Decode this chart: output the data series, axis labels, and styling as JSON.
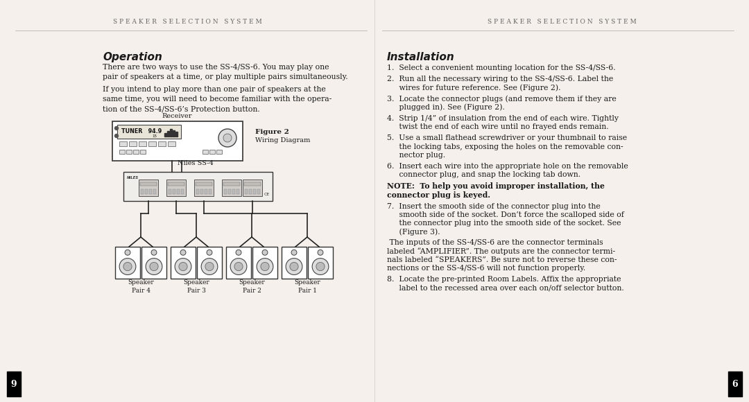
{
  "bg_color": "#f5f0eb",
  "header_left": "S P E A K E R   S E L E C T I O N   S Y S T E M",
  "header_right": "S P E A K E R   S E L E C T I O N   S Y S T E M",
  "page_num_left": "9",
  "page_num_right": "6",
  "left_section_title": "Operation",
  "left_para1": "There are two ways to use the SS-4/SS-6. You may play one\npair of speakers at a time, or play multiple pairs simultaneously.",
  "left_para2": "If you intend to play more than one pair of speakers at the\nsame time, you will need to become familiar with the opera-\ntion of the SS-4/SS-6’s Protection button.",
  "figure_label": "Figure 2",
  "figure_caption": "Wiring Diagram",
  "receiver_label": "Receiver",
  "niles_label": "Niles SS-4",
  "speaker_labels": [
    "Speaker\nPair 4",
    "Speaker\nPair 3",
    "Speaker\nPair 2",
    "Speaker\nPair 1"
  ],
  "right_section_title": "Installation",
  "install_items": [
    "1.  Select a convenient mounting location for the SS-4/SS-6.",
    "2.  Run all the necessary wiring to the SS-4/SS-6. Label the\n     wires for future reference. See (Figure 2).",
    "3.  Locate the connector plugs (and remove them if they are\n     plugged in). See (Figure 2).",
    "4.  Strip 1/4” of insulation from the end of each wire. Tightly\n     twist the end of each wire until no frayed ends remain.",
    "5.  Use a small flathead screwdriver or your thumbnail to raise\n     the locking tabs, exposing the holes on the removable con-\n     nector plug.",
    "6.  Insert each wire into the appropriate hole on the removable\n     connector plug, and snap the locking tab down.",
    "NOTE:  To help you avoid improper installation, the\nconnector plug is keyed.",
    "7.  Insert the smooth side of the connector plug into the\n     smooth side of the socket. Don’t force the scalloped side of\n     the connector plug into the smooth side of the socket. See\n     (Figure 3).",
    "para: The inputs of the SS-4/SS-6 are the connector terminals\nlabeled “AMPLIFIER”. The outputs are the connector termi-\nnals labeled “SPEAKERS”. Be sure not to reverse these con-\nnections or the SS-4/SS-6 will not function properly.",
    "8.  Locate the pre-printed Room Labels. Affix the appropriate\n     label to the recessed area over each on/off selector button."
  ],
  "text_color": "#1a1a1a",
  "header_color": "#666666"
}
